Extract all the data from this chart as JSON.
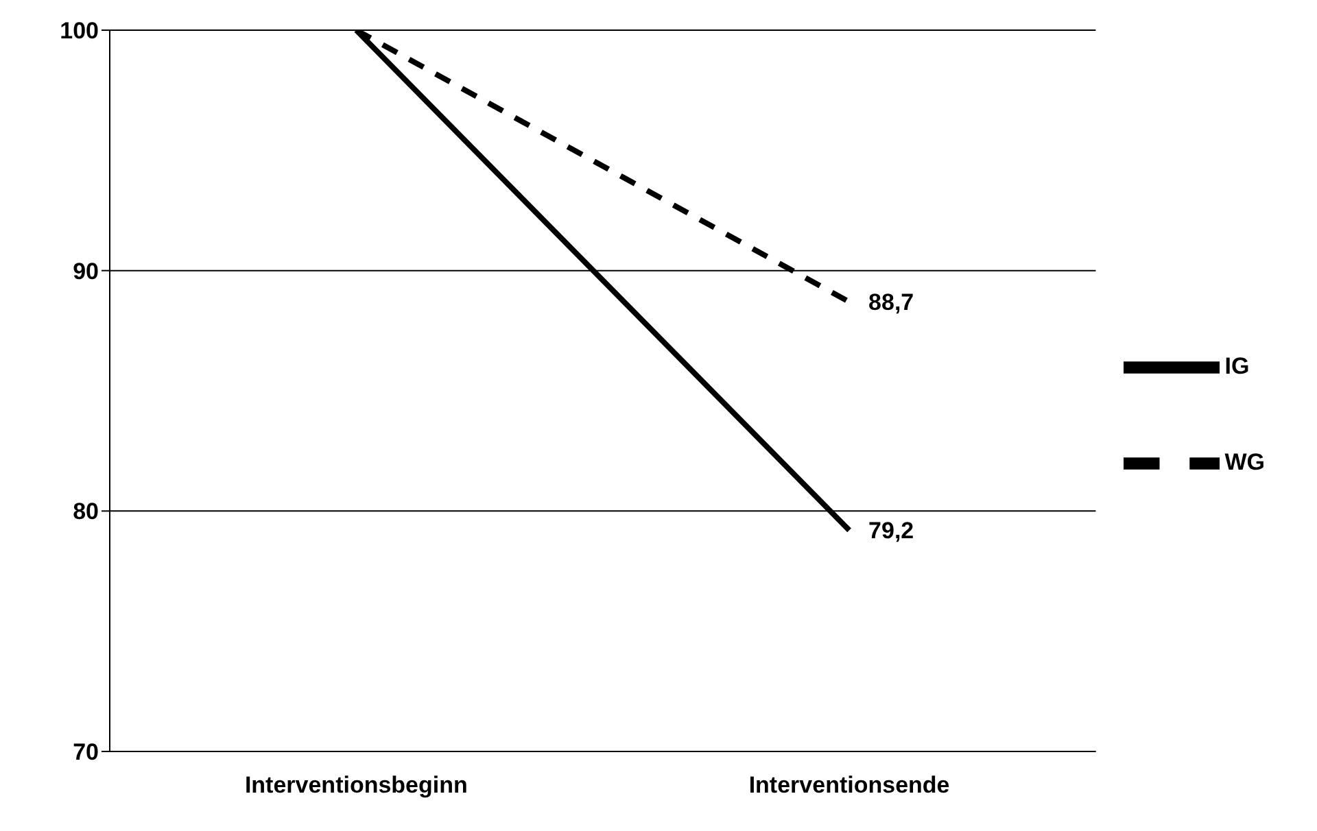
{
  "chart_data": {
    "type": "line",
    "categories": [
      "Interventionsbeginn",
      "Interventionsende"
    ],
    "series": [
      {
        "name": "WG",
        "color": "#000000",
        "values": [
          100,
          88.7
        ],
        "line_style": "dashed",
        "value_labels": [
          null,
          "88,7"
        ]
      },
      {
        "name": "IG",
        "color": "#000000",
        "values": [
          100,
          79.2
        ],
        "line_style": "solid",
        "value_labels": [
          null,
          "79,2"
        ]
      }
    ],
    "ylim": [
      70,
      100
    ],
    "yticks": [
      70,
      80,
      90,
      100
    ],
    "grid": "y",
    "legend": "right",
    "marker": "none"
  }
}
